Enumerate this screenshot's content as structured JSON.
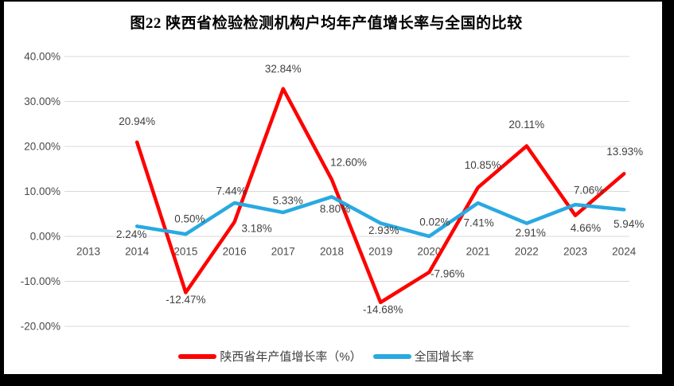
{
  "title": "图22  陕西省检验检测机构户均年产值增长率与全国的比较",
  "colors": {
    "shaanxi_line": "#fe0000",
    "national_line": "#29a9e1",
    "grid": "#d9d9d9",
    "axis_text": "#4a4a4a",
    "label_text": "#404040",
    "frame": "#000000",
    "background": "#ffffff"
  },
  "chart_data": {
    "type": "line",
    "categories": [
      "2013",
      "2014",
      "2015",
      "2016",
      "2017",
      "2018",
      "2019",
      "2020",
      "2021",
      "2022",
      "2023",
      "2024"
    ],
    "series": [
      {
        "name": "陕西省年产值增长率（%）",
        "color": "#fe0000",
        "values": [
          null,
          20.94,
          -12.47,
          3.18,
          32.84,
          12.6,
          -14.68,
          -7.96,
          10.85,
          20.11,
          4.66,
          13.93
        ]
      },
      {
        "name": "全国增长率",
        "color": "#29a9e1",
        "values": [
          null,
          2.24,
          0.5,
          7.44,
          5.33,
          8.8,
          2.93,
          0.02,
          7.41,
          2.91,
          7.06,
          5.94
        ]
      }
    ],
    "label_format": "two-decimal-percent",
    "y_ticks": [
      "40.00%",
      "30.00%",
      "20.00%",
      "10.00%",
      "0.00%",
      "-10.00%",
      "-20.00%"
    ],
    "y_tick_values": [
      40,
      30,
      20,
      10,
      0,
      -10,
      -20
    ],
    "ylim": [
      -20,
      40
    ],
    "grid": true,
    "legend_position": "bottom"
  }
}
